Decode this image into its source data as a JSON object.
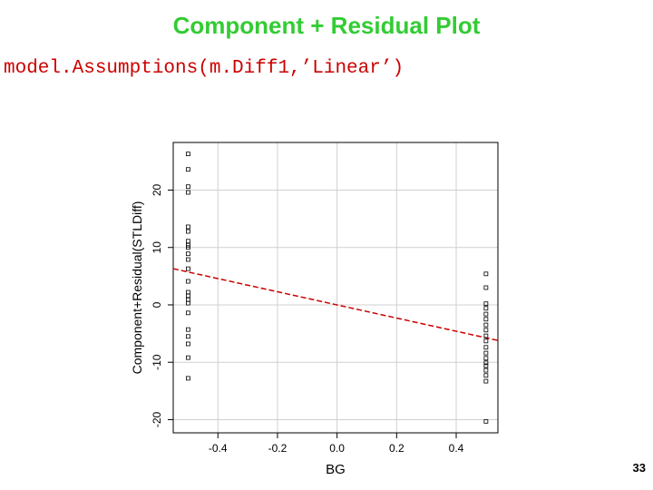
{
  "slide": {
    "title": "Component + Residual Plot",
    "code": "model.Assumptions(m.Diff1,’Linear’)",
    "page_number": "33"
  },
  "chart_data": {
    "type": "scatter",
    "x_label": "BG",
    "y_label": "Component+Residual(STLDiff)",
    "x": [
      -0.5,
      -0.5,
      -0.5,
      -0.5,
      -0.5,
      -0.5,
      -0.5,
      -0.5,
      -0.5,
      -0.5,
      -0.5,
      -0.5,
      -0.5,
      -0.5,
      -0.5,
      -0.5,
      -0.5,
      -0.5,
      -0.5,
      -0.5,
      -0.5,
      -0.5,
      -0.5,
      0.5,
      0.5,
      0.5,
      0.5,
      0.5,
      0.5,
      0.5,
      0.5,
      0.5,
      0.5,
      0.5,
      0.5,
      0.5,
      0.5,
      0.5,
      0.5,
      0.5,
      0.5,
      0.5
    ],
    "values": [
      26.3,
      23.6,
      20.6,
      19.6,
      13.6,
      12.8,
      11.1,
      10.4,
      10.0,
      8.9,
      7.9,
      6.3,
      4.1,
      2.2,
      1.6,
      0.9,
      0.3,
      -1.4,
      -4.3,
      -5.5,
      -6.8,
      -9.2,
      -12.8,
      5.4,
      3.0,
      0.2,
      -0.6,
      -1.6,
      -2.5,
      -3.5,
      -4.4,
      -5.4,
      -6.3,
      -7.4,
      -8.4,
      -9.3,
      -10.1,
      -10.6,
      -11.4,
      -12.3,
      -13.3,
      -20.3
    ],
    "color": "#000000",
    "fit": {
      "x": [
        -0.55,
        0.54
      ],
      "values": [
        6.3,
        -6.2
      ],
      "color": "#cc0000"
    },
    "xlim": [
      -0.55,
      0.54
    ],
    "ylim": [
      -22.3,
      28.3
    ],
    "xticks": [
      -0.4,
      -0.2,
      {
        "value": 0,
        "label": "0.0"
      },
      0.2,
      0.4
    ],
    "yticks": [
      -20,
      -10,
      0,
      10,
      20
    ],
    "grid": true
  }
}
